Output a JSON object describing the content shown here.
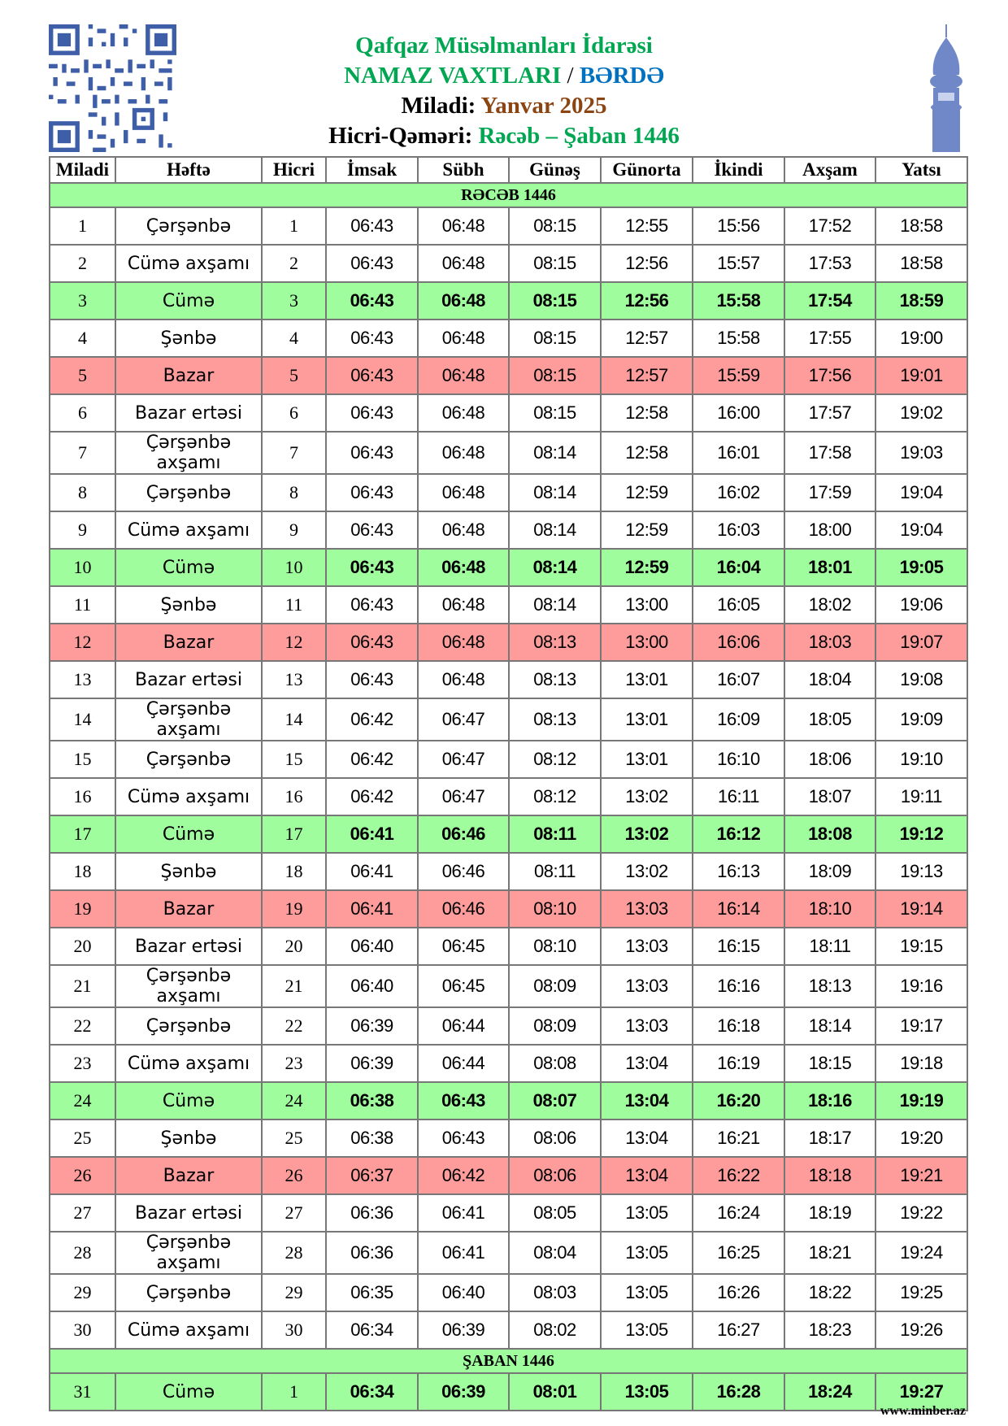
{
  "header": {
    "org": "Qafqaz Müsəlmanları İdarəsi",
    "title_prefix": "NAMAZ VAXTLARI",
    "title_sep": " / ",
    "city": "BƏRDƏ",
    "miladi_label": "Miladi: ",
    "miladi_value": "Yanvar 2025",
    "hicri_label": "Hicri-Qəməri: ",
    "hicri_value": "Rəcəb – Şaban 1446"
  },
  "colors": {
    "title_green": "#00a651",
    "city_blue": "#0070c0",
    "month_brown": "#8b4513",
    "friday_bg": "#a0fd9e",
    "sunday_bg": "#fe9c9c",
    "icons": "#4a6cb3"
  },
  "icons": [
    "qr-code-icon",
    "minaret-icon"
  ],
  "columns": [
    "Miladi",
    "Həftə",
    "Hicri",
    "İmsak",
    "Sübh",
    "Günəş",
    "Günorta",
    "İkindi",
    "Axşam",
    "Yatsı"
  ],
  "sections": [
    "RƏCƏB 1446",
    "ŞABAN 1446"
  ],
  "rows": [
    {
      "m": "1",
      "d": "Çərşənbə",
      "h": "1",
      "t": [
        "06:43",
        "06:48",
        "08:15",
        "12:55",
        "15:56",
        "17:52",
        "18:58"
      ]
    },
    {
      "m": "2",
      "d": "Cümə axşamı",
      "h": "2",
      "t": [
        "06:43",
        "06:48",
        "08:15",
        "12:56",
        "15:57",
        "17:53",
        "18:58"
      ]
    },
    {
      "m": "3",
      "d": "Cümə",
      "h": "3",
      "type": "friday",
      "t": [
        "06:43",
        "06:48",
        "08:15",
        "12:56",
        "15:58",
        "17:54",
        "18:59"
      ]
    },
    {
      "m": "4",
      "d": "Şənbə",
      "h": "4",
      "t": [
        "06:43",
        "06:48",
        "08:15",
        "12:57",
        "15:58",
        "17:55",
        "19:00"
      ]
    },
    {
      "m": "5",
      "d": "Bazar",
      "h": "5",
      "type": "sunday",
      "t": [
        "06:43",
        "06:48",
        "08:15",
        "12:57",
        "15:59",
        "17:56",
        "19:01"
      ]
    },
    {
      "m": "6",
      "d": "Bazar ertəsi",
      "h": "6",
      "t": [
        "06:43",
        "06:48",
        "08:15",
        "12:58",
        "16:00",
        "17:57",
        "19:02"
      ]
    },
    {
      "m": "7",
      "d": "Çərşənbə axşamı",
      "h": "7",
      "t": [
        "06:43",
        "06:48",
        "08:14",
        "12:58",
        "16:01",
        "17:58",
        "19:03"
      ]
    },
    {
      "m": "8",
      "d": "Çərşənbə",
      "h": "8",
      "t": [
        "06:43",
        "06:48",
        "08:14",
        "12:59",
        "16:02",
        "17:59",
        "19:04"
      ]
    },
    {
      "m": "9",
      "d": "Cümə axşamı",
      "h": "9",
      "t": [
        "06:43",
        "06:48",
        "08:14",
        "12:59",
        "16:03",
        "18:00",
        "19:04"
      ]
    },
    {
      "m": "10",
      "d": "Cümə",
      "h": "10",
      "type": "friday",
      "t": [
        "06:43",
        "06:48",
        "08:14",
        "12:59",
        "16:04",
        "18:01",
        "19:05"
      ]
    },
    {
      "m": "11",
      "d": "Şənbə",
      "h": "11",
      "t": [
        "06:43",
        "06:48",
        "08:14",
        "13:00",
        "16:05",
        "18:02",
        "19:06"
      ]
    },
    {
      "m": "12",
      "d": "Bazar",
      "h": "12",
      "type": "sunday",
      "t": [
        "06:43",
        "06:48",
        "08:13",
        "13:00",
        "16:06",
        "18:03",
        "19:07"
      ]
    },
    {
      "m": "13",
      "d": "Bazar ertəsi",
      "h": "13",
      "t": [
        "06:43",
        "06:48",
        "08:13",
        "13:01",
        "16:07",
        "18:04",
        "19:08"
      ]
    },
    {
      "m": "14",
      "d": "Çərşənbə axşamı",
      "h": "14",
      "t": [
        "06:42",
        "06:47",
        "08:13",
        "13:01",
        "16:09",
        "18:05",
        "19:09"
      ]
    },
    {
      "m": "15",
      "d": "Çərşənbə",
      "h": "15",
      "t": [
        "06:42",
        "06:47",
        "08:12",
        "13:01",
        "16:10",
        "18:06",
        "19:10"
      ]
    },
    {
      "m": "16",
      "d": "Cümə axşamı",
      "h": "16",
      "t": [
        "06:42",
        "06:47",
        "08:12",
        "13:02",
        "16:11",
        "18:07",
        "19:11"
      ]
    },
    {
      "m": "17",
      "d": "Cümə",
      "h": "17",
      "type": "friday",
      "t": [
        "06:41",
        "06:46",
        "08:11",
        "13:02",
        "16:12",
        "18:08",
        "19:12"
      ]
    },
    {
      "m": "18",
      "d": "Şənbə",
      "h": "18",
      "t": [
        "06:41",
        "06:46",
        "08:11",
        "13:02",
        "16:13",
        "18:09",
        "19:13"
      ]
    },
    {
      "m": "19",
      "d": "Bazar",
      "h": "19",
      "type": "sunday",
      "t": [
        "06:41",
        "06:46",
        "08:10",
        "13:03",
        "16:14",
        "18:10",
        "19:14"
      ]
    },
    {
      "m": "20",
      "d": "Bazar ertəsi",
      "h": "20",
      "t": [
        "06:40",
        "06:45",
        "08:10",
        "13:03",
        "16:15",
        "18:11",
        "19:15"
      ]
    },
    {
      "m": "21",
      "d": "Çərşənbə axşamı",
      "h": "21",
      "t": [
        "06:40",
        "06:45",
        "08:09",
        "13:03",
        "16:16",
        "18:13",
        "19:16"
      ]
    },
    {
      "m": "22",
      "d": "Çərşənbə",
      "h": "22",
      "t": [
        "06:39",
        "06:44",
        "08:09",
        "13:03",
        "16:18",
        "18:14",
        "19:17"
      ]
    },
    {
      "m": "23",
      "d": "Cümə axşamı",
      "h": "23",
      "t": [
        "06:39",
        "06:44",
        "08:08",
        "13:04",
        "16:19",
        "18:15",
        "19:18"
      ]
    },
    {
      "m": "24",
      "d": "Cümə",
      "h": "24",
      "type": "friday",
      "t": [
        "06:38",
        "06:43",
        "08:07",
        "13:04",
        "16:20",
        "18:16",
        "19:19"
      ]
    },
    {
      "m": "25",
      "d": "Şənbə",
      "h": "25",
      "t": [
        "06:38",
        "06:43",
        "08:06",
        "13:04",
        "16:21",
        "18:17",
        "19:20"
      ]
    },
    {
      "m": "26",
      "d": "Bazar",
      "h": "26",
      "type": "sunday",
      "t": [
        "06:37",
        "06:42",
        "08:06",
        "13:04",
        "16:22",
        "18:18",
        "19:21"
      ]
    },
    {
      "m": "27",
      "d": "Bazar ertəsi",
      "h": "27",
      "t": [
        "06:36",
        "06:41",
        "08:05",
        "13:05",
        "16:24",
        "18:19",
        "19:22"
      ]
    },
    {
      "m": "28",
      "d": "Çərşənbə axşamı",
      "h": "28",
      "t": [
        "06:36",
        "06:41",
        "08:04",
        "13:05",
        "16:25",
        "18:21",
        "19:24"
      ]
    },
    {
      "m": "29",
      "d": "Çərşənbə",
      "h": "29",
      "t": [
        "06:35",
        "06:40",
        "08:03",
        "13:05",
        "16:26",
        "18:22",
        "19:25"
      ]
    },
    {
      "m": "30",
      "d": "Cümə axşamı",
      "h": "30",
      "t": [
        "06:34",
        "06:39",
        "08:02",
        "13:05",
        "16:27",
        "18:23",
        "19:26"
      ]
    },
    {
      "m": "31",
      "d": "Cümə",
      "h": "1",
      "type": "friday",
      "section_before": 1,
      "t": [
        "06:34",
        "06:39",
        "08:01",
        "13:05",
        "16:28",
        "18:24",
        "19:27"
      ]
    }
  ],
  "footer": "www.minber.az"
}
